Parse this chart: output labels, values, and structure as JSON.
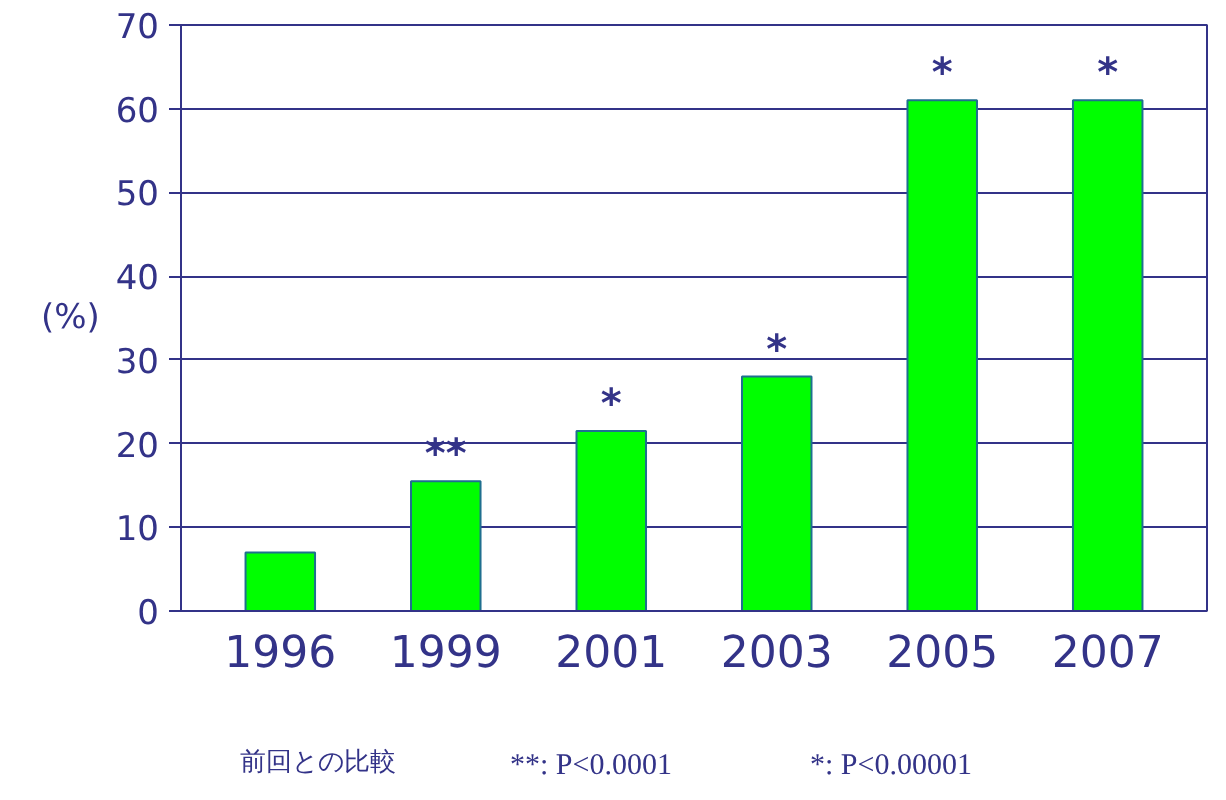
{
  "chart_data": {
    "type": "bar",
    "ylabel": "(%)",
    "categories": [
      "1996",
      "1999",
      "2001",
      "2003",
      "2005",
      "2007"
    ],
    "values": [
      7,
      15.5,
      21.5,
      28,
      61,
      61
    ],
    "color": "#00ff00",
    "ylim": [
      0,
      70
    ],
    "yticks": [
      0,
      10,
      20,
      30,
      40,
      50,
      60,
      70
    ],
    "grid": "y",
    "annotations": [
      {
        "text": "**",
        "x": "1999",
        "y": 15.5
      },
      {
        "text": "*",
        "x": "2001",
        "y": 21.5
      },
      {
        "text": "*",
        "x": "2003",
        "y": 28
      },
      {
        "text": "*",
        "x": "2005",
        "y": 61
      },
      {
        "text": "*",
        "x": "2007",
        "y": 61
      },
      "前回との比較",
      "**: P<0.0001",
      "*: P<0.00001"
    ]
  }
}
